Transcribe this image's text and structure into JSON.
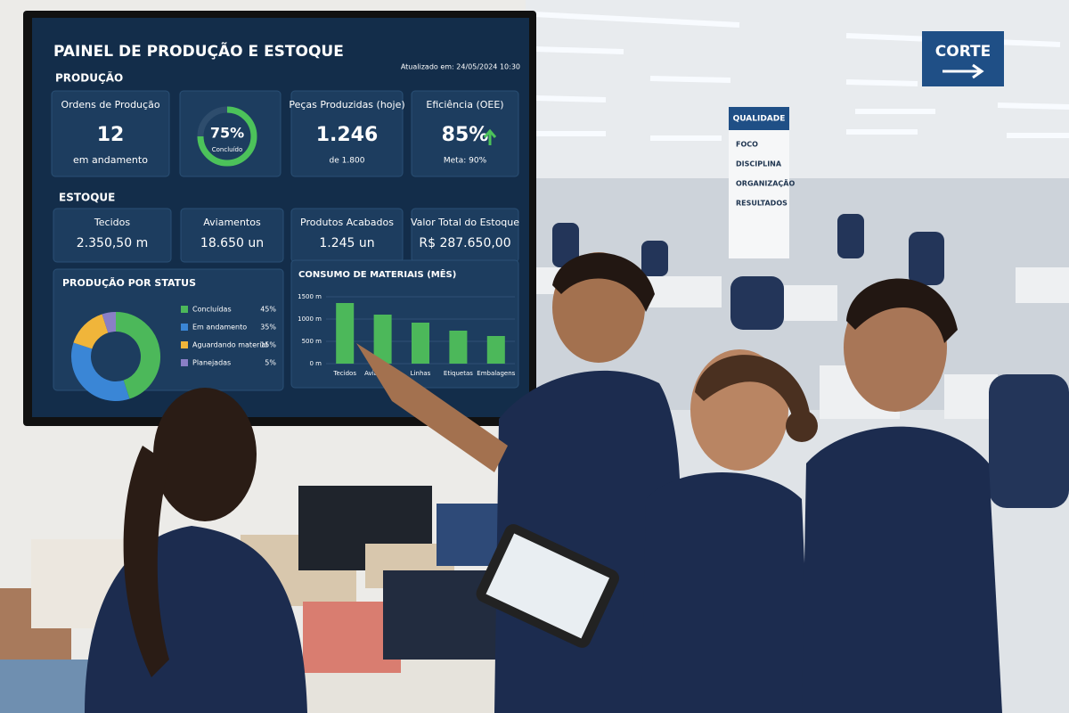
{
  "screen": {
    "title": "PAINEL DE PRODUÇÃO E ESTOQUE",
    "updated": "Atualizado em: 24/05/2024 10:30",
    "production_heading": "PRODUÇÃO",
    "production_cards": [
      {
        "title": "Ordens de Produção",
        "value": "12",
        "sub": "em andamento"
      },
      {
        "title": "Peças Produzidas (hoje)",
        "value": "1.246",
        "sub": "de 1.800"
      },
      {
        "title": "Eficiência (OEE)",
        "value": "85%",
        "sub": "Meta: 90%"
      }
    ],
    "stock_heading": "ESTOQUE",
    "stock_cards": [
      {
        "title": "Tecidos",
        "value": "2.350,50 m"
      },
      {
        "title": "Aviamentos",
        "value": "18.650 un"
      },
      {
        "title": "Produtos Acabados",
        "value": "1.245 un"
      },
      {
        "title": "Valor Total do Estoque",
        "value": "R$ 287.650,00"
      }
    ]
  },
  "signs": {
    "corte": "CORTE",
    "quality_title": "QUALIDADE",
    "quality_items": [
      "FOCO",
      "DISCIPLINA",
      "ORGANIZAÇÃO",
      "RESULTADOS"
    ]
  },
  "chart_data": [
    {
      "type": "gauge",
      "value": 75,
      "value_label": "75%",
      "caption": "Concluído",
      "color": "#4cc25a"
    },
    {
      "type": "donut",
      "title": "PRODUÇÃO POR STATUS",
      "categories": [
        "Concluídas",
        "Em andamento",
        "Aguardando material",
        "Planejadas"
      ],
      "values": [
        45,
        35,
        15,
        5
      ],
      "value_labels": [
        "45%",
        "35%",
        "15%",
        "5%"
      ],
      "colors": [
        "#4cb85a",
        "#3a86d6",
        "#f0b53a",
        "#8a7fc6"
      ]
    },
    {
      "type": "bar",
      "title": "CONSUMO DE MATERIAIS (MÊS)",
      "categories": [
        "Tecidos",
        "Aviamentos",
        "Linhas",
        "Etiquetas",
        "Embalagens"
      ],
      "values": [
        1360,
        1100,
        920,
        740,
        620
      ],
      "color": "#4cb85a",
      "ylim": [
        0,
        1500
      ],
      "yticks": [
        {
          "value": 0,
          "label": "0 m"
        },
        {
          "value": 500,
          "label": "500 m"
        },
        {
          "value": 1000,
          "label": "1000 m"
        },
        {
          "value": 1500,
          "label": "1500 m"
        }
      ],
      "grid": true
    }
  ]
}
